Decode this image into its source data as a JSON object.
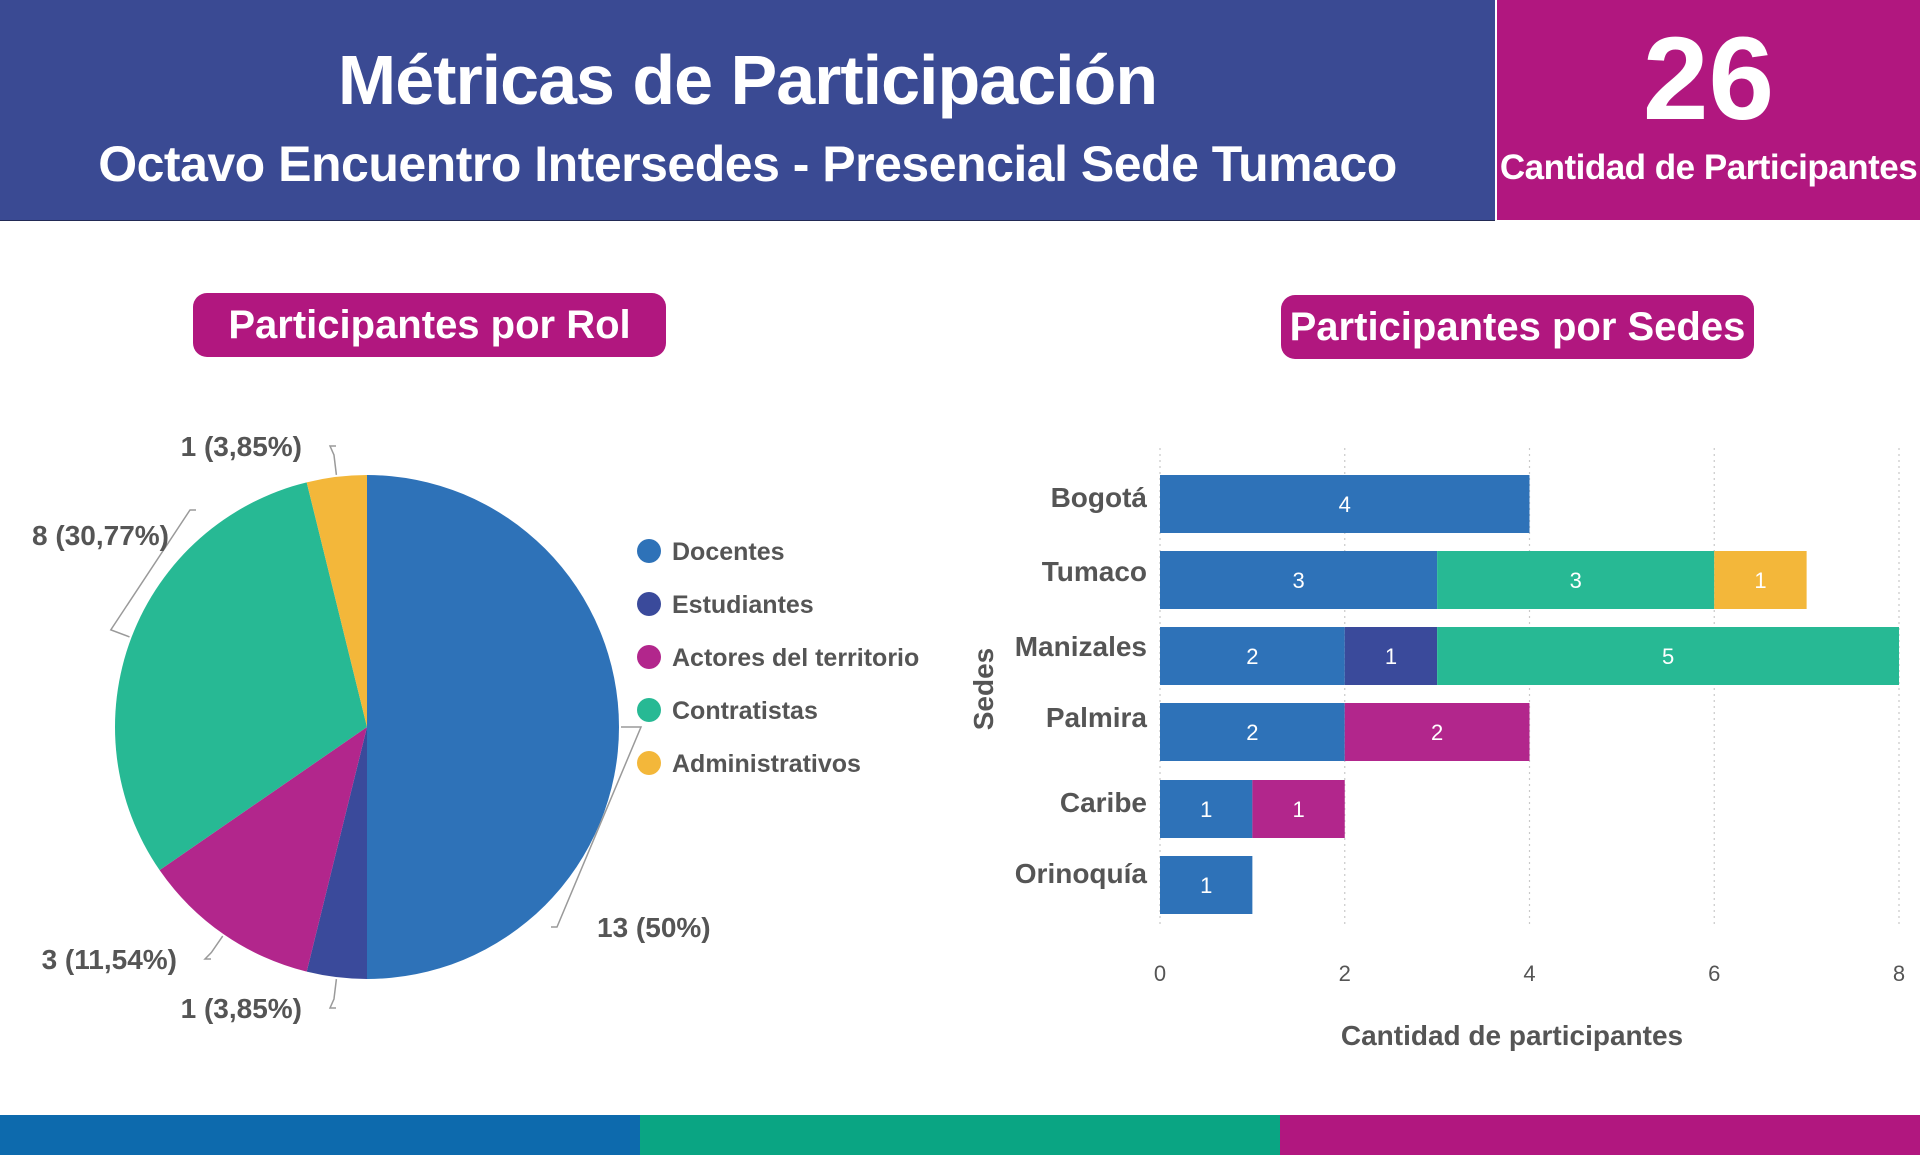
{
  "header": {
    "title": "Métricas de Participación",
    "subtitle": "Octavo Encuentro Intersedes - Presencial Sede Tumaco"
  },
  "kpi": {
    "value": "26",
    "label": "Cantidad de Participantes"
  },
  "colors": {
    "header_bg": "#3a4a93",
    "accent": "#b1177f",
    "docentes": "#2e72b8",
    "estudiantes": "#3a4a9b",
    "actores": "#b2268c",
    "contratistas": "#27b994",
    "administrativos": "#f3b73a",
    "footer": [
      "#0d6aad",
      "#0aa583",
      "#b1177f"
    ]
  },
  "chart_data": [
    {
      "type": "pie",
      "title": "Participantes por Rol",
      "legend_position": "right",
      "slices": [
        {
          "name": "Docentes",
          "value": 13,
          "label": "13 (50%)"
        },
        {
          "name": "Estudiantes",
          "value": 1,
          "label": "1 (3,85%)"
        },
        {
          "name": "Actores del territorio",
          "value": 3,
          "label": "3 (11,54%)"
        },
        {
          "name": "Contratistas",
          "value": 8,
          "label": "8 (30,77%)"
        },
        {
          "name": "Administrativos",
          "value": 1,
          "label": "1 (3,85%)"
        }
      ]
    },
    {
      "type": "bar",
      "orientation": "horizontal",
      "stacked": true,
      "title": "Participantes por Sedes",
      "xlabel": "Cantidad de participantes",
      "ylabel": "Sedes",
      "xlim": [
        0,
        8
      ],
      "xticks": [
        "0",
        "2",
        "4",
        "6",
        "8"
      ],
      "grid": "vertical dotted",
      "categories": [
        "Bogotá",
        "Tumaco",
        "Manizales",
        "Palmira",
        "Caribe",
        "Orinoquía"
      ],
      "series": [
        {
          "name": "Docentes",
          "values": [
            4,
            3,
            2,
            2,
            1,
            1
          ]
        },
        {
          "name": "Estudiantes",
          "values": [
            0,
            0,
            1,
            0,
            0,
            0
          ]
        },
        {
          "name": "Actores del territorio",
          "values": [
            0,
            0,
            0,
            2,
            1,
            0
          ]
        },
        {
          "name": "Contratistas",
          "values": [
            0,
            3,
            5,
            0,
            0,
            0
          ]
        },
        {
          "name": "Administrativos",
          "values": [
            0,
            1,
            0,
            0,
            0,
            0
          ]
        }
      ]
    }
  ]
}
